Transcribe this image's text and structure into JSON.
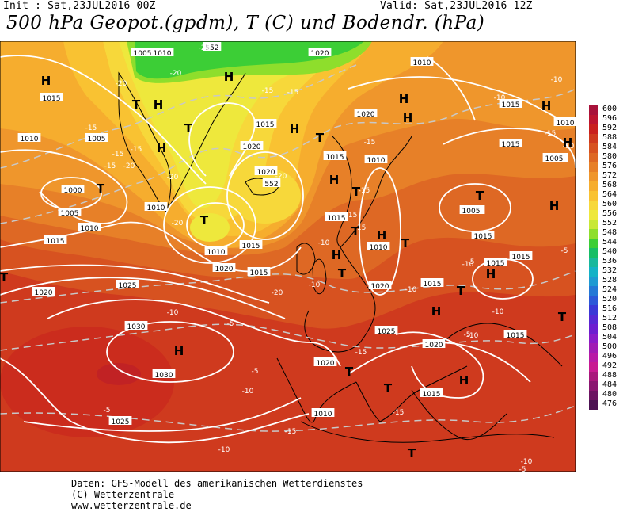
{
  "header": {
    "init": "Init : Sat,23JUL2016 00Z",
    "valid": "Valid: Sat,23JUL2016 12Z",
    "title": "500 hPa Geopot.(gpdm), T (C) und Bodendr. (hPa)"
  },
  "legend": {
    "values": [
      "600",
      "596",
      "592",
      "588",
      "584",
      "580",
      "576",
      "572",
      "568",
      "564",
      "560",
      "556",
      "552",
      "548",
      "544",
      "540",
      "536",
      "532",
      "528",
      "524",
      "520",
      "516",
      "512",
      "508",
      "504",
      "500",
      "496",
      "492",
      "488",
      "484",
      "480",
      "476"
    ],
    "colors": [
      "#a8123a",
      "#bc1530",
      "#c9201e",
      "#cf3a1e",
      "#d75220",
      "#de6824",
      "#e78028",
      "#ef962c",
      "#f6ad2e",
      "#f9c232",
      "#f7d83a",
      "#eee83c",
      "#c8e836",
      "#8ede2c",
      "#3cce36",
      "#16be66",
      "#18b89c",
      "#14b2c6",
      "#1e9ad2",
      "#2478d6",
      "#2c58d8",
      "#3a38d6",
      "#5628d4",
      "#6c1ed0",
      "#8a1cc8",
      "#a01cb4",
      "#b81aa6",
      "#c81a92",
      "#a8187c",
      "#8a1670",
      "#6c1462",
      "#4c1252"
    ]
  },
  "map": {
    "pressure_labels": [
      "1005",
      "1010",
      "552",
      "1015",
      "1020",
      "1010",
      "1005",
      "1015",
      "1010",
      "1005",
      "1000",
      "1005",
      "1010",
      "1015",
      "1010",
      "1015",
      "1020",
      "1020",
      "1015",
      "1010",
      "552",
      "1015",
      "1020",
      "1015",
      "1010",
      "1020",
      "1025",
      "1030",
      "1030",
      "1025",
      "1020",
      "1025",
      "1020",
      "1015",
      "1015",
      "1020",
      "1010",
      "1015",
      "1015",
      "1005",
      "1010",
      "1015",
      "1015",
      "1010",
      "1015",
      "1020",
      "1015",
      "1010",
      "1005",
      "1020"
    ],
    "temp_labels": [
      "-20",
      "-20",
      "-25",
      "-15",
      "-15",
      "-15",
      "-15",
      "-20",
      "-20",
      "-20",
      "-15",
      "-15",
      "-20",
      "-20",
      "-15",
      "-15",
      "-15",
      "-15",
      "-10",
      "-10",
      "-10",
      "-10",
      "-10",
      "-10",
      "-15",
      "-10",
      "-5",
      "-5",
      "-10",
      "-5",
      "-5",
      "-10",
      "-5",
      "-15",
      "-10",
      "-15",
      "-15",
      "-10",
      "-10",
      "-5",
      "-10",
      "-5"
    ],
    "high_labels": [
      "H",
      "H",
      "H",
      "H",
      "H",
      "H",
      "H",
      "H",
      "H",
      "H",
      "H",
      "H",
      "H",
      "H",
      "H",
      "H",
      "H"
    ],
    "low_labels": [
      "T",
      "T",
      "T",
      "T",
      "T",
      "T",
      "T",
      "T",
      "T",
      "T",
      "T",
      "T",
      "T",
      "T",
      "T",
      "T"
    ]
  },
  "footer": {
    "line1": "Daten: GFS-Modell des amerikanischen Wetterdienstes",
    "line2": "(C) Wetterzentrale",
    "line3": "www.wetterzentrale.de"
  }
}
